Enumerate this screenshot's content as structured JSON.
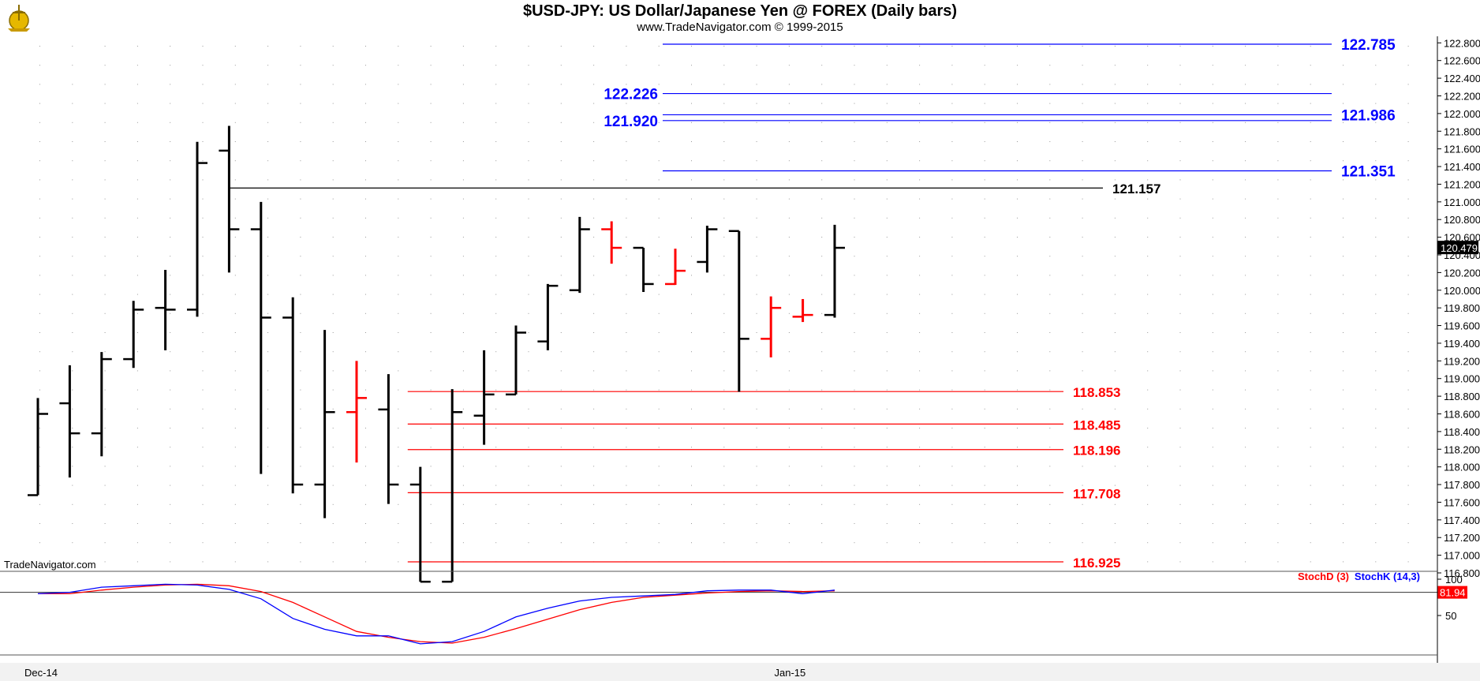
{
  "header": {
    "title": "$USD-JPY:  US Dollar/Japanese Yen @ FOREX  (Daily bars)",
    "subtitle": "www.TradeNavigator.com © 1999-2015"
  },
  "watermark": "TradeNavigator.com",
  "chart_data": {
    "type": "ohlc",
    "y_axis_ticks": [
      "116.800",
      "117.000",
      "117.200",
      "117.400",
      "117.600",
      "117.800",
      "118.000",
      "118.200",
      "118.400",
      "118.600",
      "118.800",
      "119.000",
      "119.200",
      "119.400",
      "119.600",
      "119.800",
      "120.000",
      "120.200",
      "120.400",
      "120.600",
      "120.800",
      "121.000",
      "121.200",
      "121.400",
      "121.600",
      "121.800",
      "122.000",
      "122.200",
      "122.400",
      "122.600",
      "122.800"
    ],
    "ylim": [
      116.7,
      122.85
    ],
    "x_axis_labels": [
      {
        "label": "Dec-14",
        "bar": 0
      },
      {
        "label": "Jan-15",
        "bar": 23.5
      }
    ],
    "last_price": "120.479",
    "bars": [
      {
        "o": 117.68,
        "h": 118.78,
        "l": 117.68,
        "c": 118.6,
        "color": "black"
      },
      {
        "o": 118.72,
        "h": 119.15,
        "l": 117.88,
        "c": 118.38,
        "color": "black"
      },
      {
        "o": 118.38,
        "h": 119.3,
        "l": 118.12,
        "c": 119.22,
        "color": "black"
      },
      {
        "o": 119.22,
        "h": 119.88,
        "l": 119.12,
        "c": 119.78,
        "color": "black"
      },
      {
        "o": 119.8,
        "h": 120.23,
        "l": 119.32,
        "c": 119.78,
        "color": "black"
      },
      {
        "o": 119.78,
        "h": 121.68,
        "l": 119.7,
        "c": 121.44,
        "color": "black"
      },
      {
        "o": 121.58,
        "h": 121.86,
        "l": 120.2,
        "c": 120.69,
        "color": "black"
      },
      {
        "o": 120.69,
        "h": 121.0,
        "l": 117.92,
        "c": 119.69,
        "color": "black"
      },
      {
        "o": 119.69,
        "h": 119.92,
        "l": 117.7,
        "c": 117.8,
        "color": "black"
      },
      {
        "o": 117.8,
        "h": 119.55,
        "l": 117.42,
        "c": 118.62,
        "color": "black"
      },
      {
        "o": 118.62,
        "h": 119.2,
        "l": 118.05,
        "c": 118.78,
        "color": "red"
      },
      {
        "o": 118.65,
        "h": 119.05,
        "l": 117.58,
        "c": 117.8,
        "color": "black"
      },
      {
        "o": 117.8,
        "h": 118.0,
        "l": 116.7,
        "c": 116.7,
        "color": "black"
      },
      {
        "o": 116.7,
        "h": 118.88,
        "l": 116.7,
        "c": 118.62,
        "color": "black"
      },
      {
        "o": 118.58,
        "h": 119.32,
        "l": 118.25,
        "c": 118.82,
        "color": "black"
      },
      {
        "o": 118.82,
        "h": 119.6,
        "l": 118.82,
        "c": 119.52,
        "color": "black"
      },
      {
        "o": 119.42,
        "h": 120.07,
        "l": 119.32,
        "c": 120.05,
        "color": "black"
      },
      {
        "o": 120.0,
        "h": 120.83,
        "l": 119.97,
        "c": 120.69,
        "color": "black"
      },
      {
        "o": 120.69,
        "h": 120.78,
        "l": 120.3,
        "c": 120.48,
        "color": "red"
      },
      {
        "o": 120.48,
        "h": 120.48,
        "l": 119.98,
        "c": 120.07,
        "color": "black"
      },
      {
        "o": 120.07,
        "h": 120.47,
        "l": 120.06,
        "c": 120.22,
        "color": "red"
      },
      {
        "o": 120.32,
        "h": 120.73,
        "l": 120.2,
        "c": 120.69,
        "color": "black"
      },
      {
        "o": 120.67,
        "h": 120.67,
        "l": 118.85,
        "c": 119.45,
        "color": "black"
      },
      {
        "o": 119.45,
        "h": 119.93,
        "l": 119.24,
        "c": 119.8,
        "color": "red"
      },
      {
        "o": 119.7,
        "h": 119.9,
        "l": 119.64,
        "c": 119.72,
        "color": "red"
      },
      {
        "o": 119.72,
        "h": 120.74,
        "l": 119.69,
        "c": 120.48,
        "color": "black"
      }
    ],
    "levels": [
      {
        "value": 122.785,
        "label": "122.785",
        "color": "#0000ff",
        "from_bar": 20,
        "label_side": "right"
      },
      {
        "value": 122.226,
        "label": "122.226",
        "color": "#0000ff",
        "from_bar": 20,
        "label_side": "left"
      },
      {
        "value": 121.986,
        "label": "121.986",
        "color": "#0000ff",
        "from_bar": 20,
        "label_side": "right"
      },
      {
        "value": 121.92,
        "label": "121.920",
        "color": "#0000ff",
        "from_bar": 20,
        "label_side": "left"
      },
      {
        "value": 121.351,
        "label": "121.351",
        "color": "#0000ff",
        "from_bar": 20,
        "label_side": "right"
      },
      {
        "value": 121.157,
        "label": "121.157",
        "color": "#000000",
        "from_bar": 6,
        "label_side": "right"
      },
      {
        "value": 118.853,
        "label": "118.853",
        "color": "#ff0000",
        "from_bar": 12,
        "label_side": "right"
      },
      {
        "value": 118.485,
        "label": "118.485",
        "color": "#ff0000",
        "from_bar": 12,
        "label_side": "right"
      },
      {
        "value": 118.196,
        "label": "118.196",
        "color": "#ff0000",
        "from_bar": 12,
        "label_side": "right"
      },
      {
        "value": 117.708,
        "label": "117.708",
        "color": "#ff0000",
        "from_bar": 12,
        "label_side": "right"
      },
      {
        "value": 116.925,
        "label": "116.925",
        "color": "#ff0000",
        "from_bar": 12,
        "label_side": "right"
      }
    ],
    "stochastic": {
      "ticks": [
        "100",
        "50"
      ],
      "ylim": [
        0,
        100
      ],
      "reference_line": 81.94,
      "last_value_label": "81.94",
      "series": [
        {
          "name": "StochD (3)",
          "color": "#ff0000",
          "values": [
            80,
            80,
            85,
            89,
            92,
            93,
            91,
            83,
            68,
            48,
            28,
            20,
            14,
            12,
            20,
            32,
            45,
            58,
            68,
            75,
            78,
            81,
            83,
            84,
            83,
            84
          ]
        },
        {
          "name": "StochK (14,3)",
          "color": "#0000ff",
          "values": [
            80,
            82,
            89,
            91,
            93,
            92,
            86,
            73,
            46,
            31,
            22,
            22,
            11,
            14,
            28,
            48,
            60,
            70,
            75,
            77,
            79,
            84,
            85,
            85,
            80,
            85
          ]
        }
      ]
    }
  }
}
